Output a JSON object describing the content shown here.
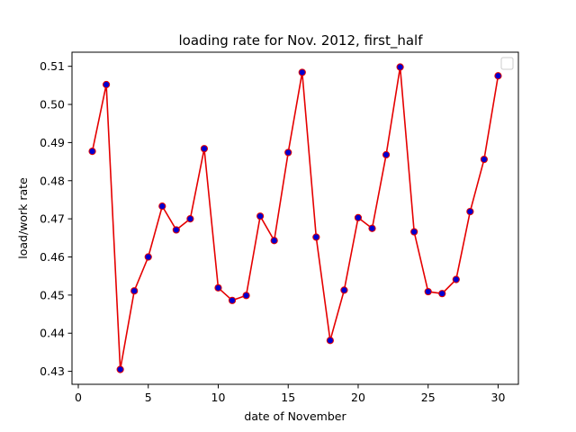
{
  "chart_data": {
    "type": "line",
    "title": "loading rate for Nov. 2012, first_half",
    "xlabel": "date of November",
    "ylabel": "load/work rate",
    "xlim": [
      -0.45,
      31.45
    ],
    "ylim": [
      0.4266,
      0.5137
    ],
    "xticks": [
      0,
      5,
      10,
      15,
      20,
      25,
      30
    ],
    "yticks": [
      0.43,
      0.44,
      0.45,
      0.46,
      0.47,
      0.48,
      0.49,
      0.5,
      0.51
    ],
    "ytick_labels": [
      "0.43",
      "0.44",
      "0.45",
      "0.46",
      "0.47",
      "0.48",
      "0.49",
      "0.50",
      "0.51"
    ],
    "grid": false,
    "legend": "upper-right",
    "colors": {
      "line": "#e50000",
      "marker_fill": "#0000d0",
      "marker_edge": "#e50000"
    },
    "series": [
      {
        "x": [
          1,
          2,
          3,
          4,
          5,
          6,
          7,
          8,
          9,
          10,
          11,
          12,
          13,
          14,
          15,
          16,
          17,
          18,
          19,
          20,
          21,
          22,
          23,
          24,
          25,
          26,
          27,
          28,
          29,
          30
        ],
        "values": [
          0.4877,
          0.5052,
          0.4305,
          0.4511,
          0.46,
          0.4733,
          0.4671,
          0.47,
          0.4884,
          0.4519,
          0.4486,
          0.4499,
          0.4707,
          0.4643,
          0.4874,
          0.5084,
          0.4652,
          0.4381,
          0.4513,
          0.4703,
          0.4675,
          0.4868,
          0.5098,
          0.4666,
          0.4509,
          0.4504,
          0.4541,
          0.4719,
          0.4856,
          0.5075
        ]
      }
    ]
  }
}
